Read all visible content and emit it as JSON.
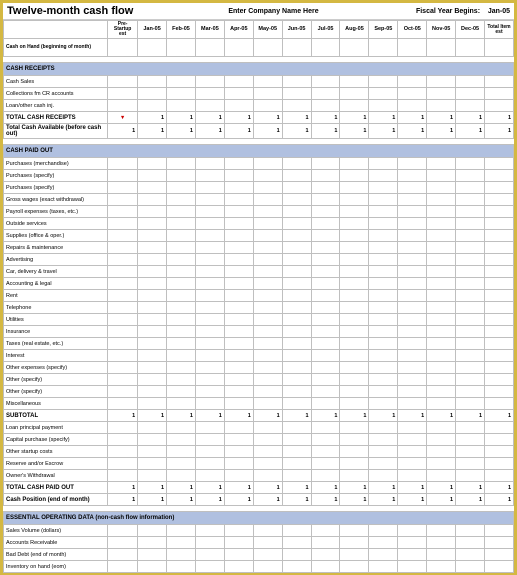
{
  "header": {
    "title": "Twelve-month cash flow",
    "company": "Enter Company Name Here",
    "fiscal_label": "Fiscal Year Begins:",
    "fiscal_value": "Jan-05"
  },
  "columns": {
    "label": "",
    "pre": "Pre-Startup est",
    "months": [
      "Jan-05",
      "Feb-05",
      "Mar-05",
      "Apr-05",
      "May-05",
      "Jun-05",
      "Jul-05",
      "Aug-05",
      "Sep-05",
      "Oct-05",
      "Nov-05",
      "Dec-05"
    ],
    "total": "Total Item est"
  },
  "cash_on_hand": {
    "label": "Cash on Hand (beginning of month)"
  },
  "sections": [
    {
      "title": "CASH RECEIPTS",
      "rows": [
        {
          "label": "Cash Sales"
        },
        {
          "label": "Collections fm CR accounts"
        },
        {
          "label": "Loan/other cash inj."
        }
      ],
      "subtotals": [
        {
          "label": "TOTAL CASH RECEIPTS",
          "red_mark": true,
          "values": [
            "1",
            "1",
            "1",
            "1",
            "1",
            "1",
            "1",
            "1",
            "1",
            "1",
            "1",
            "1",
            "1"
          ]
        },
        {
          "label": "Total Cash Available (before cash out)",
          "values": [
            "1",
            "1",
            "1",
            "1",
            "1",
            "1",
            "1",
            "1",
            "1",
            "1",
            "1",
            "1",
            "1"
          ]
        }
      ]
    },
    {
      "title": "CASH PAID OUT",
      "rows": [
        {
          "label": "Purchases (merchandise)"
        },
        {
          "label": "Purchases (specify)"
        },
        {
          "label": "Purchases (specify)"
        },
        {
          "label": "Gross wages (exact withdrawal)"
        },
        {
          "label": "Payroll expenses (taxes, etc.)"
        },
        {
          "label": "Outside services"
        },
        {
          "label": "Supplies (office & oper.)"
        },
        {
          "label": "Repairs & maintenance"
        },
        {
          "label": "Advertising"
        },
        {
          "label": "Car, delivery & travel"
        },
        {
          "label": "Accounting & legal"
        },
        {
          "label": "Rent"
        },
        {
          "label": "Telephone"
        },
        {
          "label": "Utilities"
        },
        {
          "label": "Insurance"
        },
        {
          "label": "Taxes (real estate, etc.)"
        },
        {
          "label": "Interest"
        },
        {
          "label": "Other expenses (specify)"
        },
        {
          "label": "Other (specify)"
        },
        {
          "label": "Other (specify)"
        },
        {
          "label": "Miscellaneous"
        }
      ],
      "subtotals": [
        {
          "label": "SUBTOTAL",
          "values": [
            "1",
            "1",
            "1",
            "1",
            "1",
            "1",
            "1",
            "1",
            "1",
            "1",
            "1",
            "1",
            "1",
            "1"
          ]
        }
      ],
      "rows2": [
        {
          "label": "Loan principal payment"
        },
        {
          "label": "Capital purchase (specify)"
        },
        {
          "label": "Other startup costs"
        },
        {
          "label": "Reserve and/or Escrow"
        },
        {
          "label": "Owner's Withdrawal"
        }
      ],
      "subtotals2": [
        {
          "label": "TOTAL CASH PAID OUT",
          "values": [
            "1",
            "1",
            "1",
            "1",
            "1",
            "1",
            "1",
            "1",
            "1",
            "1",
            "1",
            "1",
            "1",
            "1"
          ]
        },
        {
          "label": "Cash Position (end of month)",
          "values": [
            "1",
            "1",
            "1",
            "1",
            "1",
            "1",
            "1",
            "1",
            "1",
            "1",
            "1",
            "1",
            "1",
            "1"
          ]
        }
      ]
    },
    {
      "title": "ESSENTIAL OPERATING DATA (non-cash flow information)",
      "rows": [
        {
          "label": "Sales Volume (dollars)"
        },
        {
          "label": "Accounts Receivable"
        },
        {
          "label": "Bad Debt (end of month)"
        },
        {
          "label": "Inventory on hand (eom)"
        }
      ]
    }
  ],
  "style": {
    "border_color": "#d4b842",
    "section_bg": "#b0c0e0",
    "grid_color": "#bfbfbf",
    "text_color": "#000000",
    "red": "#cc0000"
  }
}
